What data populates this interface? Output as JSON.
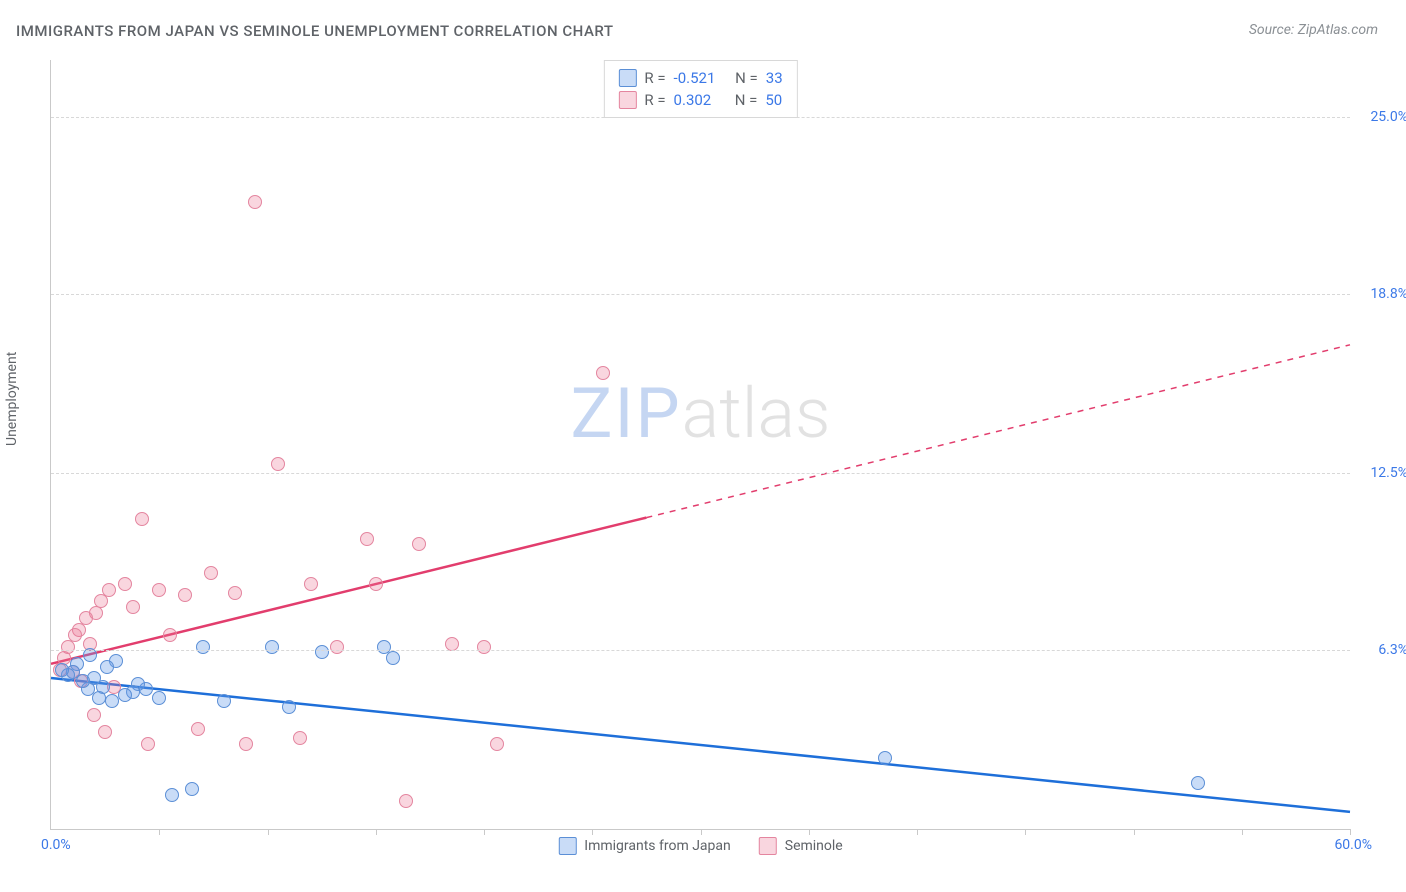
{
  "title": "IMMIGRANTS FROM JAPAN VS SEMINOLE UNEMPLOYMENT CORRELATION CHART",
  "source": "Source: ZipAtlas.com",
  "watermark": {
    "part1": "ZIP",
    "part2": "atlas"
  },
  "ylabel": "Unemployment",
  "chart": {
    "type": "scatter",
    "xlim": [
      0,
      60
    ],
    "ylim": [
      0,
      27
    ],
    "x_origin_label": "0.0%",
    "x_max_label": "60.0%",
    "x_ticks": [
      5,
      10,
      15,
      20,
      25,
      30,
      35,
      40,
      45,
      50,
      55,
      60
    ],
    "y_gridlines": [
      {
        "v": 6.3,
        "label": "6.3%"
      },
      {
        "v": 12.5,
        "label": "12.5%"
      },
      {
        "v": 18.8,
        "label": "18.8%"
      },
      {
        "v": 25.0,
        "label": "25.0%"
      }
    ],
    "background_color": "#ffffff",
    "grid_color": "#d8d8d8",
    "axis_color": "#c9c9c9",
    "tick_label_color": "#3b78e7",
    "marker_radius": 7,
    "series": [
      {
        "id": "japan",
        "name": "Immigrants from Japan",
        "fill": "rgba(99,154,232,0.35)",
        "stroke": "#5b8fd6",
        "line_color": "#1e6fd9",
        "line_width": 2.5,
        "r_value": "-0.521",
        "n_value": "33",
        "trend": {
          "x1": 0,
          "y1": 5.3,
          "x2": 60,
          "y2": 0.6,
          "solid_until_x": 60
        },
        "points": [
          [
            0.5,
            5.6
          ],
          [
            0.8,
            5.4
          ],
          [
            1.0,
            5.5
          ],
          [
            1.2,
            5.8
          ],
          [
            1.5,
            5.2
          ],
          [
            1.7,
            4.9
          ],
          [
            1.8,
            6.1
          ],
          [
            2.0,
            5.3
          ],
          [
            2.2,
            4.6
          ],
          [
            2.4,
            5.0
          ],
          [
            2.6,
            5.7
          ],
          [
            2.8,
            4.5
          ],
          [
            3.0,
            5.9
          ],
          [
            3.4,
            4.7
          ],
          [
            3.8,
            4.8
          ],
          [
            4.0,
            5.1
          ],
          [
            4.4,
            4.9
          ],
          [
            5.0,
            4.6
          ],
          [
            5.6,
            1.2
          ],
          [
            6.5,
            1.4
          ],
          [
            7.0,
            6.4
          ],
          [
            8.0,
            4.5
          ],
          [
            10.2,
            6.4
          ],
          [
            11.0,
            4.3
          ],
          [
            12.5,
            6.2
          ],
          [
            15.4,
            6.4
          ],
          [
            15.8,
            6.0
          ],
          [
            38.5,
            2.5
          ],
          [
            53.0,
            1.6
          ]
        ]
      },
      {
        "id": "seminole",
        "name": "Seminole",
        "fill": "rgba(235,120,150,0.30)",
        "stroke": "#e4859f",
        "line_color": "#e23d6d",
        "line_width": 2.5,
        "r_value": "0.302",
        "n_value": "50",
        "trend": {
          "x1": 0,
          "y1": 5.8,
          "x2": 60,
          "y2": 17.0,
          "solid_until_x": 27.5
        },
        "points": [
          [
            0.4,
            5.6
          ],
          [
            0.6,
            6.0
          ],
          [
            0.8,
            6.4
          ],
          [
            1.0,
            5.5
          ],
          [
            1.1,
            6.8
          ],
          [
            1.3,
            7.0
          ],
          [
            1.4,
            5.2
          ],
          [
            1.6,
            7.4
          ],
          [
            1.8,
            6.5
          ],
          [
            2.0,
            4.0
          ],
          [
            2.1,
            7.6
          ],
          [
            2.3,
            8.0
          ],
          [
            2.5,
            3.4
          ],
          [
            2.7,
            8.4
          ],
          [
            2.9,
            5.0
          ],
          [
            3.4,
            8.6
          ],
          [
            3.8,
            7.8
          ],
          [
            4.2,
            10.9
          ],
          [
            4.5,
            3.0
          ],
          [
            5.0,
            8.4
          ],
          [
            5.5,
            6.8
          ],
          [
            6.2,
            8.2
          ],
          [
            6.8,
            3.5
          ],
          [
            7.4,
            9.0
          ],
          [
            8.5,
            8.3
          ],
          [
            9.0,
            3.0
          ],
          [
            9.4,
            22.0
          ],
          [
            10.5,
            12.8
          ],
          [
            11.5,
            3.2
          ],
          [
            12.0,
            8.6
          ],
          [
            13.2,
            6.4
          ],
          [
            14.6,
            10.2
          ],
          [
            15.0,
            8.6
          ],
          [
            16.4,
            1.0
          ],
          [
            17.0,
            10.0
          ],
          [
            18.5,
            6.5
          ],
          [
            20.0,
            6.4
          ],
          [
            20.6,
            3.0
          ],
          [
            25.5,
            16.0
          ]
        ]
      }
    ]
  },
  "legend": {
    "r_label": "R =",
    "n_label": "N ="
  }
}
